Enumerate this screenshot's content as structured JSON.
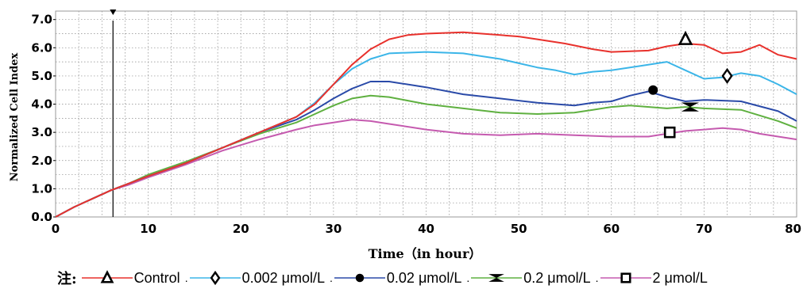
{
  "chart_data": {
    "type": "line",
    "xlabel": "Time（in hour）",
    "ylabel": "Normalized Cell Index",
    "xlim": [
      0,
      80
    ],
    "ylim": [
      0,
      7.3
    ],
    "x_ticks": [
      "0",
      "10",
      "20",
      "30",
      "40",
      "50",
      "60",
      "70",
      "80"
    ],
    "y_ticks": [
      "0.0",
      "1.0",
      "2.0",
      "3.0",
      "4.0",
      "5.0",
      "6.0",
      "7.0"
    ],
    "grid": true,
    "vertical_marker_x": 6.2,
    "legend_note": "注:",
    "legend_position": "bottom",
    "series": [
      {
        "name": "Control",
        "color": "#e8312c",
        "symbol": "triangle",
        "marker_at": [
          68.0,
          6.3
        ],
        "points": [
          [
            0,
            0
          ],
          [
            2,
            0.35
          ],
          [
            4,
            0.65
          ],
          [
            6,
            0.95
          ],
          [
            8,
            1.2
          ],
          [
            10,
            1.45
          ],
          [
            14,
            1.9
          ],
          [
            18,
            2.45
          ],
          [
            22,
            3.0
          ],
          [
            26,
            3.55
          ],
          [
            28,
            4.0
          ],
          [
            30,
            4.7
          ],
          [
            32,
            5.4
          ],
          [
            34,
            5.95
          ],
          [
            36,
            6.3
          ],
          [
            38,
            6.45
          ],
          [
            40,
            6.5
          ],
          [
            44,
            6.55
          ],
          [
            48,
            6.45
          ],
          [
            50,
            6.4
          ],
          [
            52,
            6.3
          ],
          [
            55,
            6.15
          ],
          [
            58,
            5.95
          ],
          [
            60,
            5.85
          ],
          [
            64,
            5.9
          ],
          [
            66,
            6.05
          ],
          [
            68,
            6.15
          ],
          [
            70,
            6.1
          ],
          [
            72,
            5.8
          ],
          [
            74,
            5.85
          ],
          [
            76,
            6.1
          ],
          [
            78,
            5.75
          ],
          [
            80,
            5.6
          ]
        ]
      },
      {
        "name": "0.002 μmol/L",
        "color": "#3bb5e8",
        "symbol": "diamond",
        "marker_at": [
          72.5,
          5.0
        ],
        "points": [
          [
            0,
            0
          ],
          [
            2,
            0.35
          ],
          [
            4,
            0.65
          ],
          [
            6,
            0.95
          ],
          [
            8,
            1.2
          ],
          [
            10,
            1.45
          ],
          [
            14,
            1.9
          ],
          [
            18,
            2.45
          ],
          [
            22,
            3.0
          ],
          [
            26,
            3.55
          ],
          [
            28,
            4.05
          ],
          [
            30,
            4.7
          ],
          [
            32,
            5.25
          ],
          [
            34,
            5.6
          ],
          [
            36,
            5.8
          ],
          [
            40,
            5.85
          ],
          [
            44,
            5.8
          ],
          [
            46,
            5.7
          ],
          [
            48,
            5.6
          ],
          [
            50,
            5.45
          ],
          [
            52,
            5.3
          ],
          [
            54,
            5.2
          ],
          [
            56,
            5.05
          ],
          [
            58,
            5.15
          ],
          [
            60,
            5.2
          ],
          [
            63,
            5.35
          ],
          [
            66,
            5.5
          ],
          [
            68,
            5.2
          ],
          [
            70,
            4.9
          ],
          [
            72,
            4.95
          ],
          [
            74,
            5.1
          ],
          [
            76,
            5.0
          ],
          [
            78,
            4.7
          ],
          [
            80,
            4.35
          ]
        ]
      },
      {
        "name": "0.02 μmol/L",
        "color": "#2a4aa8",
        "symbol": "circle",
        "marker_at": [
          64.5,
          4.5
        ],
        "points": [
          [
            0,
            0
          ],
          [
            2,
            0.35
          ],
          [
            4,
            0.65
          ],
          [
            6,
            0.95
          ],
          [
            8,
            1.2
          ],
          [
            10,
            1.45
          ],
          [
            14,
            1.9
          ],
          [
            18,
            2.45
          ],
          [
            22,
            3.0
          ],
          [
            26,
            3.45
          ],
          [
            28,
            3.8
          ],
          [
            30,
            4.2
          ],
          [
            32,
            4.55
          ],
          [
            34,
            4.8
          ],
          [
            36,
            4.8
          ],
          [
            40,
            4.6
          ],
          [
            44,
            4.35
          ],
          [
            48,
            4.2
          ],
          [
            52,
            4.05
          ],
          [
            56,
            3.95
          ],
          [
            58,
            4.05
          ],
          [
            60,
            4.1
          ],
          [
            62,
            4.3
          ],
          [
            64,
            4.45
          ],
          [
            66,
            4.25
          ],
          [
            68,
            4.1
          ],
          [
            70,
            4.15
          ],
          [
            74,
            4.1
          ],
          [
            78,
            3.75
          ],
          [
            80,
            3.4
          ]
        ]
      },
      {
        "name": "0.2 μmol/L",
        "color": "#5fb040",
        "symbol": "bowtie",
        "marker_at": [
          68.5,
          3.9
        ],
        "points": [
          [
            0,
            0
          ],
          [
            2,
            0.35
          ],
          [
            4,
            0.65
          ],
          [
            6,
            0.95
          ],
          [
            8,
            1.2
          ],
          [
            10,
            1.5
          ],
          [
            14,
            1.95
          ],
          [
            18,
            2.45
          ],
          [
            22,
            2.95
          ],
          [
            26,
            3.35
          ],
          [
            28,
            3.65
          ],
          [
            30,
            3.95
          ],
          [
            32,
            4.2
          ],
          [
            34,
            4.3
          ],
          [
            36,
            4.25
          ],
          [
            40,
            4.0
          ],
          [
            44,
            3.85
          ],
          [
            48,
            3.7
          ],
          [
            52,
            3.65
          ],
          [
            56,
            3.7
          ],
          [
            58,
            3.8
          ],
          [
            60,
            3.9
          ],
          [
            62,
            3.95
          ],
          [
            66,
            3.85
          ],
          [
            68,
            3.9
          ],
          [
            70,
            3.85
          ],
          [
            74,
            3.8
          ],
          [
            78,
            3.4
          ],
          [
            80,
            3.15
          ]
        ]
      },
      {
        "name": "2 μmol/L",
        "color": "#c55aaf",
        "symbol": "square",
        "marker_at": [
          66.3,
          3.0
        ],
        "points": [
          [
            0,
            0
          ],
          [
            2,
            0.35
          ],
          [
            4,
            0.65
          ],
          [
            6,
            0.95
          ],
          [
            8,
            1.15
          ],
          [
            10,
            1.4
          ],
          [
            14,
            1.85
          ],
          [
            18,
            2.35
          ],
          [
            22,
            2.75
          ],
          [
            26,
            3.1
          ],
          [
            28,
            3.25
          ],
          [
            30,
            3.35
          ],
          [
            32,
            3.45
          ],
          [
            34,
            3.4
          ],
          [
            36,
            3.3
          ],
          [
            40,
            3.1
          ],
          [
            44,
            2.95
          ],
          [
            48,
            2.9
          ],
          [
            52,
            2.95
          ],
          [
            56,
            2.9
          ],
          [
            60,
            2.85
          ],
          [
            64,
            2.85
          ],
          [
            66,
            2.95
          ],
          [
            68,
            3.05
          ],
          [
            70,
            3.1
          ],
          [
            72,
            3.15
          ],
          [
            74,
            3.1
          ],
          [
            76,
            2.95
          ],
          [
            78,
            2.85
          ],
          [
            80,
            2.75
          ]
        ]
      }
    ]
  }
}
